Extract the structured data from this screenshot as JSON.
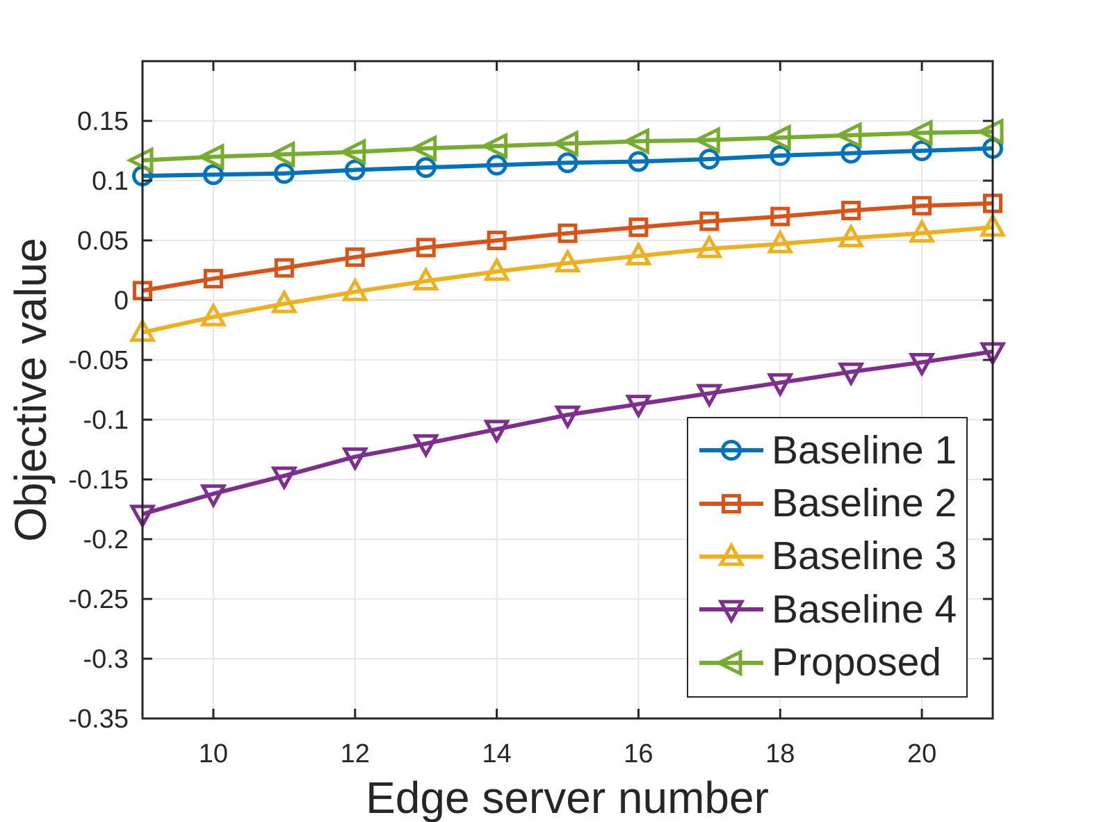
{
  "chart_data": {
    "type": "line",
    "title": "",
    "xlabel": "Edge server number",
    "ylabel": "Objective value",
    "x": [
      9,
      10,
      11,
      12,
      13,
      14,
      15,
      16,
      17,
      18,
      19,
      20,
      21
    ],
    "xlim": [
      9,
      21
    ],
    "ylim": [
      -0.35,
      0.2
    ],
    "x_tick_values": [
      10,
      12,
      14,
      16,
      18,
      20
    ],
    "x_tick_labels": [
      "10",
      "12",
      "14",
      "16",
      "18",
      "20"
    ],
    "y_tick_values": [
      0.15,
      0.1,
      0.05,
      0,
      -0.05,
      -0.1,
      -0.15,
      -0.2,
      -0.25,
      -0.3,
      -0.35
    ],
    "y_tick_labels": [
      "0.15",
      "0.1",
      "0.05",
      "0",
      "-0.05",
      "-0.1",
      "-0.15",
      "-0.2",
      "-0.25",
      "-0.3",
      "-0.35"
    ],
    "grid": true,
    "legend_position": "lower-right-inside",
    "series": [
      {
        "name": "Baseline 1",
        "color": "#0072BD",
        "marker": "circle",
        "values": [
          0.104,
          0.105,
          0.106,
          0.109,
          0.111,
          0.113,
          0.115,
          0.116,
          0.118,
          0.121,
          0.123,
          0.125,
          0.127
        ]
      },
      {
        "name": "Baseline 2",
        "color": "#D95319",
        "marker": "square",
        "values": [
          0.008,
          0.018,
          0.027,
          0.036,
          0.044,
          0.05,
          0.056,
          0.061,
          0.066,
          0.07,
          0.075,
          0.079,
          0.081
        ]
      },
      {
        "name": "Baseline 3",
        "color": "#EDB120",
        "marker": "triangle-up",
        "values": [
          -0.027,
          -0.014,
          -0.003,
          0.007,
          0.016,
          0.024,
          0.031,
          0.037,
          0.043,
          0.047,
          0.052,
          0.056,
          0.061
        ]
      },
      {
        "name": "Baseline 4",
        "color": "#7E2F8E",
        "marker": "triangle-down",
        "values": [
          -0.179,
          -0.162,
          -0.147,
          -0.131,
          -0.12,
          -0.108,
          -0.096,
          -0.087,
          -0.078,
          -0.069,
          -0.06,
          -0.052,
          -0.043
        ]
      },
      {
        "name": "Proposed",
        "color": "#77AC30",
        "marker": "triangle-left",
        "values": [
          0.117,
          0.12,
          0.122,
          0.124,
          0.127,
          0.129,
          0.131,
          0.133,
          0.134,
          0.136,
          0.138,
          0.14,
          0.141
        ]
      }
    ]
  },
  "styles": {
    "axis_color": "#262626",
    "grid_color": "#e6e6e6",
    "background": "#ffffff"
  }
}
